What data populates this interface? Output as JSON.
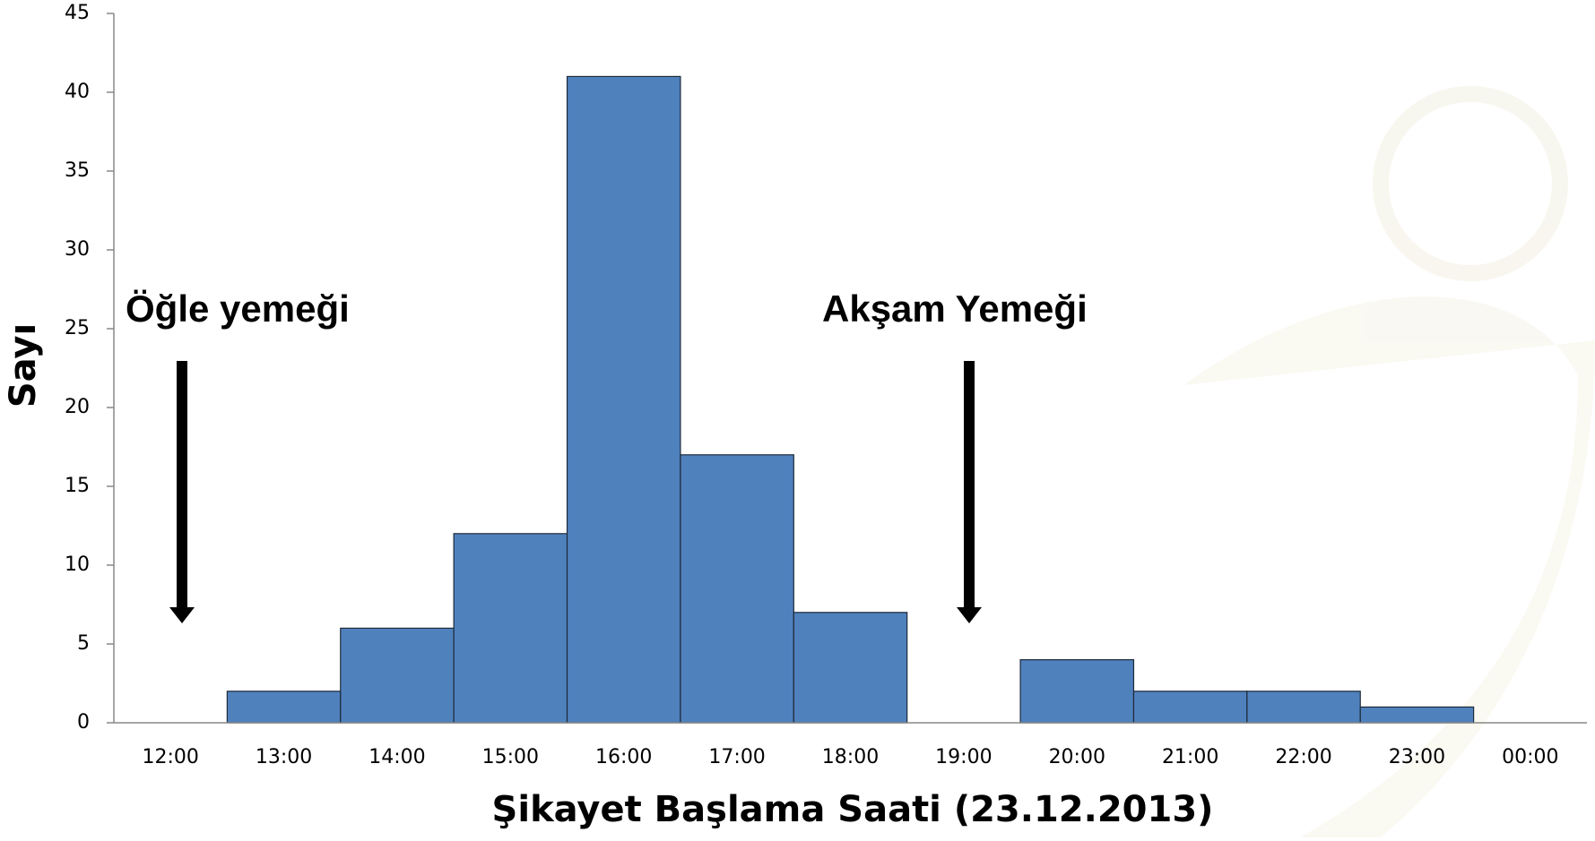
{
  "chart_data": {
    "type": "bar",
    "categories": [
      "12:00",
      "13:00",
      "14:00",
      "15:00",
      "16:00",
      "17:00",
      "18:00",
      "19:00",
      "20:00",
      "21:00",
      "22:00",
      "23:00",
      "00:00"
    ],
    "values": [
      0,
      2,
      6,
      12,
      41,
      17,
      7,
      0,
      4,
      2,
      2,
      1,
      0
    ],
    "color": "#4f81bd",
    "ylim": [
      0,
      45
    ],
    "yticks": [
      0,
      5,
      10,
      15,
      20,
      25,
      30,
      35,
      40,
      45
    ],
    "x_label": "Şikayet Başlama Saati (23.12.2013)",
    "y_label": "Sayı",
    "annotations": [
      "Öğle yemeği",
      "Akşam Yemeği"
    ]
  }
}
